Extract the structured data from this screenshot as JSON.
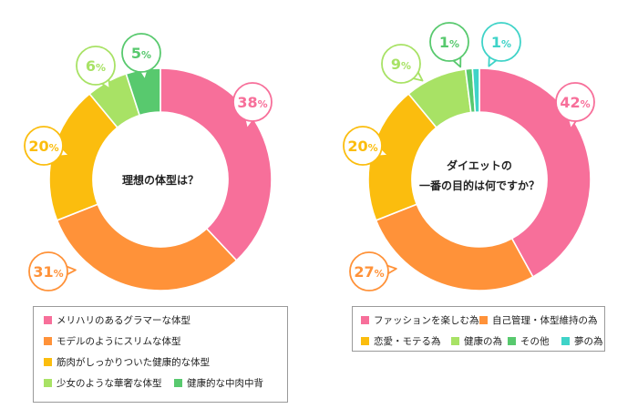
{
  "chart_data": [
    {
      "type": "pie",
      "title": "理想の体型は？",
      "categories": [
        "メリハリのあるグラマーな体型",
        "モデルのようにスリムな体型",
        "筋肉がしっかりついた健康的な体型",
        "少女のような華奢な体型",
        "健康的な中肉中背"
      ],
      "values": [
        38,
        31,
        20,
        6,
        5
      ],
      "value_labels": [
        {
          "num": "38",
          "unit": "%"
        },
        {
          "num": "31",
          "unit": "%"
        },
        {
          "num": "20",
          "unit": "%"
        },
        {
          "num": "6",
          "unit": "%"
        },
        {
          "num": "5",
          "unit": "%"
        }
      ],
      "colors": [
        "#f76f9a",
        "#ff9239",
        "#fbbd0e",
        "#a8e265",
        "#58c96e"
      ],
      "legend_placement": "bottom"
    },
    {
      "type": "pie",
      "title": "ダイエットの\n一番の目的は何ですか？",
      "categories": [
        "ファッションを楽しむ為",
        "自己管理・体型維持の為",
        "恋愛・モテる為",
        "健康の為",
        "その他",
        "夢の為"
      ],
      "values": [
        42,
        27,
        20,
        9,
        1,
        1
      ],
      "value_labels": [
        {
          "num": "42",
          "unit": "%"
        },
        {
          "num": "27",
          "unit": "%"
        },
        {
          "num": "20",
          "unit": "%"
        },
        {
          "num": "9",
          "unit": "%"
        },
        {
          "num": "1",
          "unit": "%"
        },
        {
          "num": "1",
          "unit": "%"
        }
      ],
      "colors": [
        "#f76f9a",
        "#ff9239",
        "#fbbd0e",
        "#a8e265",
        "#58c96e",
        "#3fd3c8"
      ],
      "legend_placement": "bottom"
    }
  ]
}
